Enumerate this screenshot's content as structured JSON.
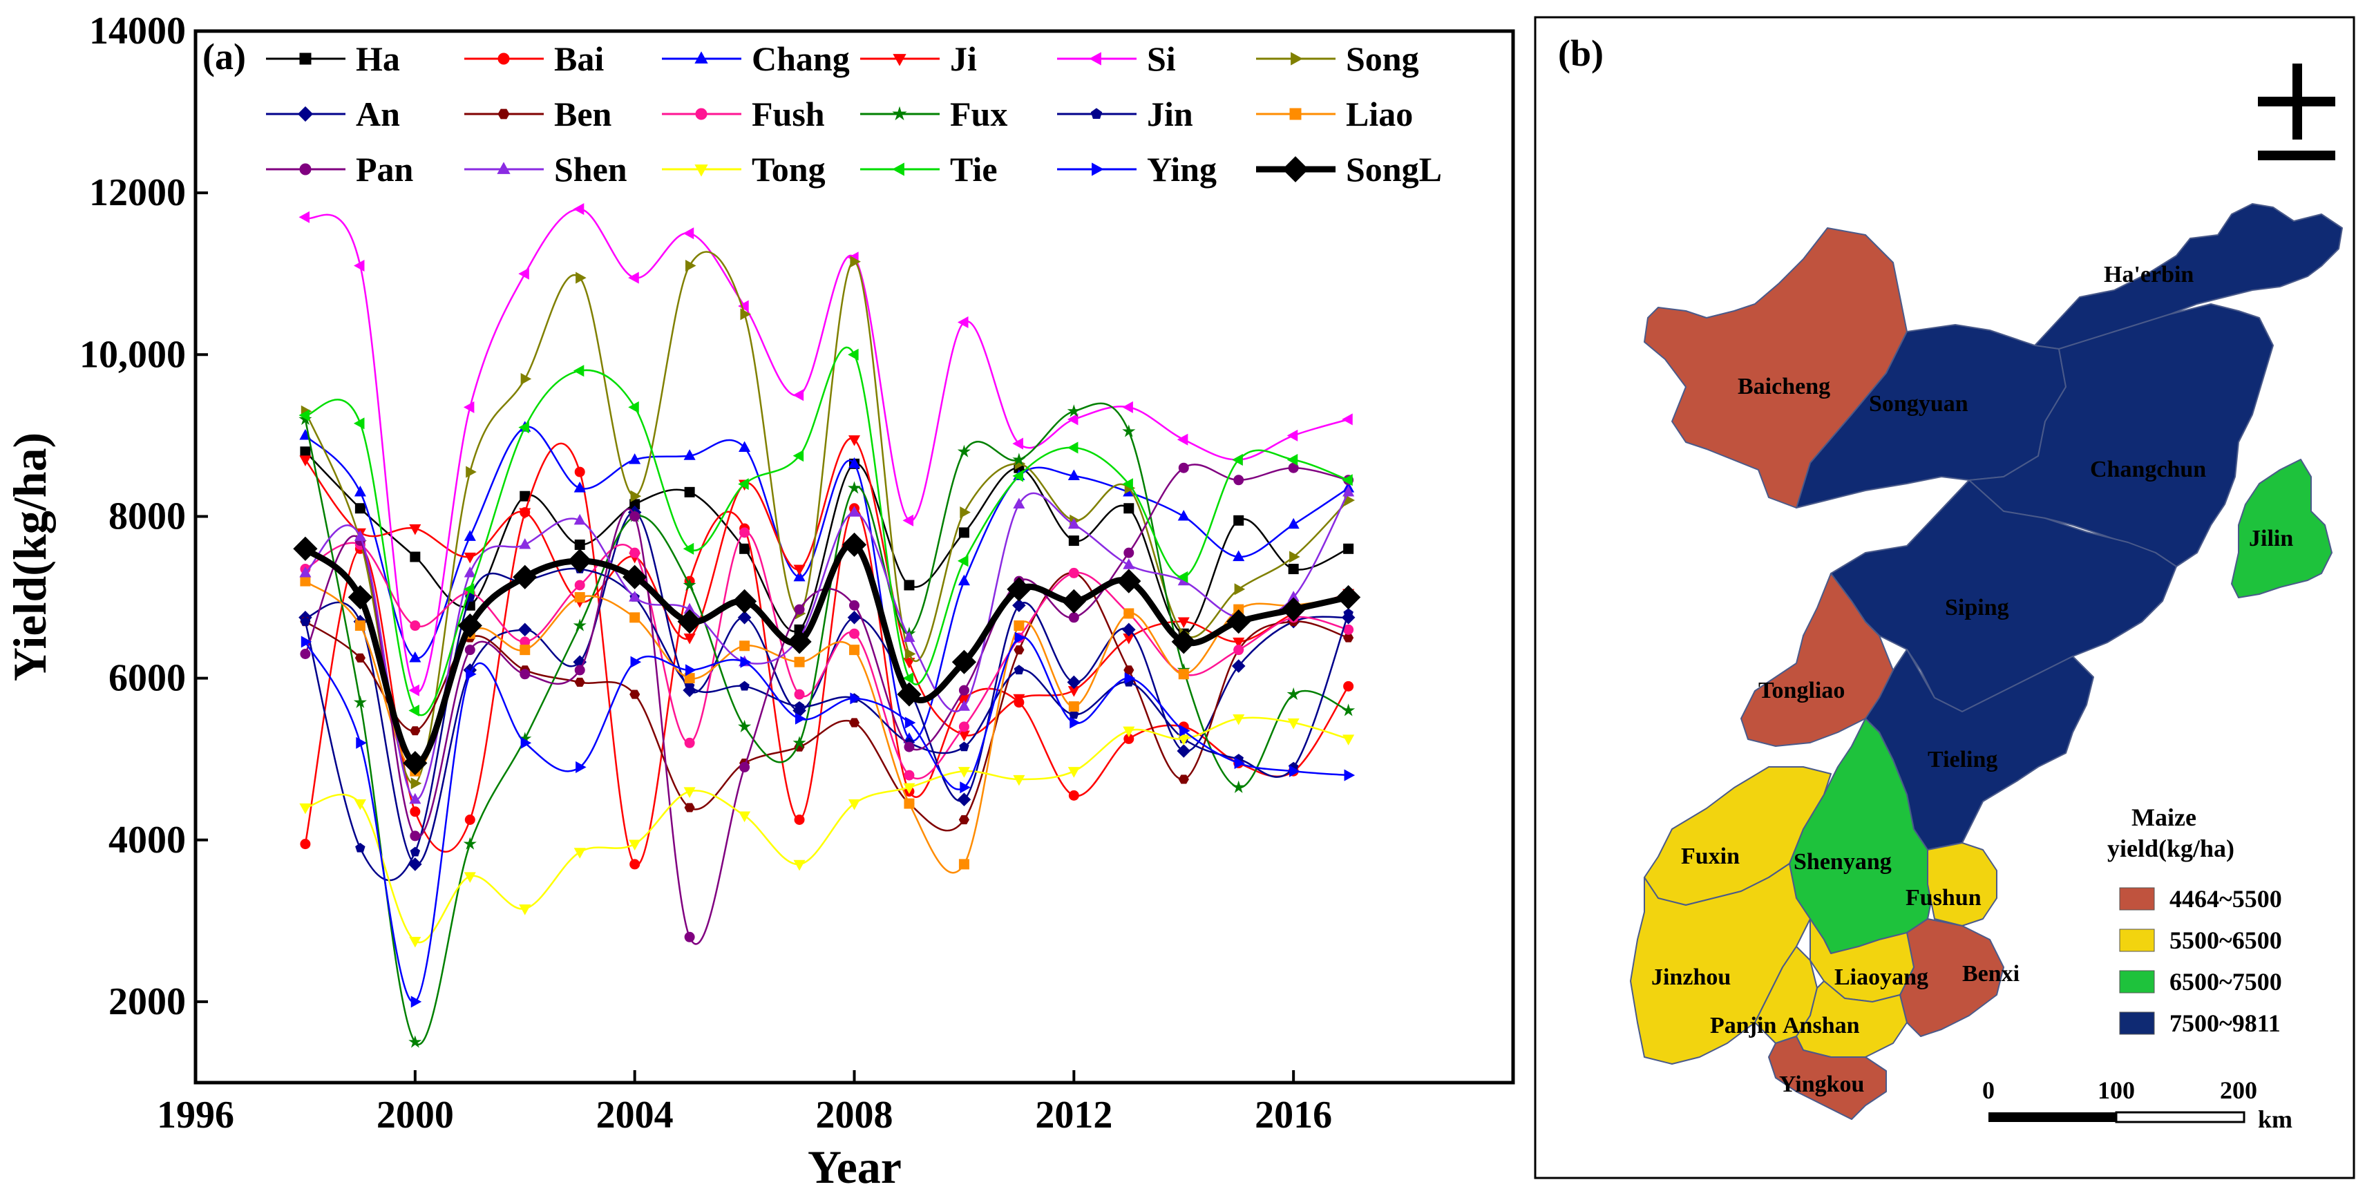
{
  "chart_data": {
    "type": "line",
    "panel_label": "(a)",
    "xlabel": "Year",
    "ylabel": "Yield(kg/ha)",
    "xlim": [
      1996,
      2020
    ],
    "ylim": [
      1000,
      14000
    ],
    "xticks": [
      1996,
      2000,
      2004,
      2008,
      2012,
      2016
    ],
    "yticks": [
      2000,
      4000,
      6000,
      8000,
      10000,
      12000,
      14000
    ],
    "ytick_labels": [
      "2000",
      "4000",
      "6000",
      "8000",
      "10,000",
      "12000",
      "14000"
    ],
    "x": [
      1998,
      1999,
      2000,
      2001,
      2002,
      2003,
      2004,
      2005,
      2006,
      2007,
      2008,
      2009,
      2010,
      2011,
      2012,
      2013,
      2014,
      2015,
      2016,
      2017
    ],
    "series": [
      {
        "name": "Ha",
        "color": "#000000",
        "marker": "square",
        "values": [
          8800,
          8100,
          7500,
          6900,
          8250,
          7650,
          8150,
          8300,
          7600,
          6600,
          8650,
          7150,
          7800,
          8600,
          7700,
          8100,
          6550,
          7950,
          7350,
          7600
        ]
      },
      {
        "name": "Bai",
        "color": "#ff0000",
        "marker": "circle",
        "values": [
          3950,
          7600,
          4350,
          4250,
          8050,
          8550,
          3700,
          7200,
          7850,
          4250,
          8100,
          4600,
          5750,
          5700,
          4550,
          5250,
          5400,
          4950,
          4850,
          5900
        ]
      },
      {
        "name": "Chang",
        "color": "#0000ff",
        "marker": "triangle-up",
        "values": [
          9000,
          8300,
          6250,
          7750,
          9100,
          8350,
          8700,
          8750,
          8850,
          7250,
          8650,
          5250,
          7200,
          8500,
          8500,
          8300,
          8000,
          7500,
          7900,
          8350
        ]
      },
      {
        "name": "Ji",
        "color": "#ff0000",
        "marker": "triangle-down",
        "values": [
          8700,
          7800,
          7850,
          7500,
          8050,
          6950,
          7500,
          6500,
          8400,
          7350,
          8950,
          6200,
          5300,
          5750,
          5850,
          6500,
          6700,
          6450,
          6800,
          7050
        ]
      },
      {
        "name": "Si",
        "color": "#ff00ff",
        "marker": "triangle-left",
        "values": [
          11700,
          11100,
          5850,
          9350,
          11000,
          11800,
          10950,
          11500,
          10600,
          9500,
          11200,
          7950,
          10400,
          8900,
          9200,
          9350,
          8950,
          8700,
          9000,
          9200
        ]
      },
      {
        "name": "Song",
        "color": "#808000",
        "marker": "triangle-right",
        "values": [
          9300,
          7700,
          4700,
          8550,
          9700,
          10950,
          8250,
          11100,
          10500,
          6800,
          11150,
          6300,
          8050,
          8650,
          7950,
          8350,
          6550,
          7100,
          7500,
          8200
        ]
      },
      {
        "name": "An",
        "color": "#00008b",
        "marker": "diamond",
        "values": [
          6750,
          6700,
          3700,
          6100,
          6600,
          6200,
          8050,
          5850,
          6750,
          5600,
          6750,
          5850,
          4500,
          6900,
          5950,
          6600,
          5100,
          6150,
          6700,
          6750
        ]
      },
      {
        "name": "Ben",
        "color": "#800000",
        "marker": "hexagon",
        "values": [
          6700,
          6250,
          5350,
          6500,
          6100,
          5950,
          5800,
          4400,
          4950,
          5150,
          5450,
          4450,
          4250,
          6350,
          7300,
          6100,
          4750,
          6350,
          6700,
          6500
        ]
      },
      {
        "name": "Fush",
        "color": "#ff1493",
        "marker": "circle",
        "values": [
          7350,
          7650,
          6650,
          7050,
          6450,
          7150,
          7550,
          5200,
          7800,
          5800,
          6550,
          4800,
          5400,
          6500,
          7300,
          6800,
          6050,
          6350,
          6750,
          6600
        ]
      },
      {
        "name": "Fux",
        "color": "#008000",
        "marker": "star",
        "values": [
          9200,
          5700,
          1500,
          3950,
          5250,
          6650,
          8000,
          7150,
          5400,
          5200,
          8350,
          6550,
          8800,
          8700,
          9300,
          9050,
          6100,
          4650,
          5800,
          5600
        ]
      },
      {
        "name": "Jin",
        "color": "#00008b",
        "marker": "pentagon",
        "values": [
          6700,
          3900,
          3850,
          7000,
          7200,
          7350,
          7000,
          5900,
          5900,
          5650,
          5750,
          5200,
          5150,
          6100,
          5550,
          5950,
          5250,
          5000,
          4900,
          6800
        ]
      },
      {
        "name": "Liao",
        "color": "#ff8c00",
        "marker": "square",
        "values": [
          7200,
          6650,
          4850,
          6550,
          6350,
          7000,
          6750,
          6000,
          6400,
          6200,
          6350,
          4450,
          3700,
          6650,
          5650,
          6800,
          6050,
          6850,
          6900,
          7000
        ]
      },
      {
        "name": "Pan",
        "color": "#800080",
        "marker": "circle",
        "values": [
          6300,
          7700,
          4050,
          6350,
          6050,
          6100,
          8000,
          2800,
          4900,
          6850,
          6900,
          5150,
          5850,
          7200,
          6750,
          7550,
          8600,
          8450,
          8600,
          8450
        ]
      },
      {
        "name": "Shen",
        "color": "#8a2be2",
        "marker": "triangle-up",
        "values": [
          7300,
          7750,
          4500,
          7300,
          7650,
          7950,
          7000,
          6850,
          6200,
          6500,
          8050,
          6500,
          5650,
          8150,
          7900,
          7400,
          7200,
          6750,
          7000,
          8300
        ]
      },
      {
        "name": "Tong",
        "color": "#ffff00",
        "marker": "triangle-down",
        "values": [
          4400,
          4450,
          2750,
          3550,
          3150,
          3850,
          3950,
          4600,
          4300,
          3700,
          4450,
          4650,
          4850,
          4750,
          4850,
          5350,
          5250,
          5500,
          5450,
          5250
        ]
      },
      {
        "name": "Tie",
        "color": "#00dd00",
        "marker": "triangle-left",
        "values": [
          9250,
          9150,
          5600,
          7100,
          9100,
          9800,
          9350,
          7600,
          8400,
          8750,
          10000,
          6000,
          7450,
          8500,
          8850,
          8400,
          7250,
          8700,
          8700,
          8450
        ]
      },
      {
        "name": "Ying",
        "color": "#0000ff",
        "marker": "triangle-right",
        "values": [
          6450,
          5200,
          2000,
          6050,
          5200,
          4900,
          6200,
          6100,
          6200,
          5500,
          5750,
          5450,
          4650,
          6500,
          5450,
          6000,
          5350,
          4950,
          4850,
          4800
        ]
      },
      {
        "name": "SongL",
        "color": "#000000",
        "marker": "diamond",
        "bold": true,
        "values": [
          7600,
          7000,
          4950,
          6650,
          7250,
          7450,
          7250,
          6700,
          6950,
          6450,
          7650,
          5800,
          6200,
          7100,
          6950,
          7200,
          6450,
          6700,
          6850,
          7000
        ]
      }
    ]
  },
  "map": {
    "panel_label": "(b)",
    "regions": [
      {
        "name": "Ha'erbin",
        "class": "7500~9811"
      },
      {
        "name": "Baicheng",
        "class": "4464~5500"
      },
      {
        "name": "Songyuan",
        "class": "7500~9811"
      },
      {
        "name": "Changchun",
        "class": "7500~9811"
      },
      {
        "name": "Jilin",
        "class": "6500~7500"
      },
      {
        "name": "Siping",
        "class": "7500~9811"
      },
      {
        "name": "Tongliao",
        "class": "4464~5500"
      },
      {
        "name": "Tieling",
        "class": "7500~9811"
      },
      {
        "name": "Fuxin",
        "class": "5500~6500"
      },
      {
        "name": "Shenyang",
        "class": "6500~7500"
      },
      {
        "name": "Fushun",
        "class": "5500~6500"
      },
      {
        "name": "Benxi",
        "class": "4464~5500"
      },
      {
        "name": "Jinzhou",
        "class": "5500~6500"
      },
      {
        "name": "Liaoyang",
        "class": "5500~6500"
      },
      {
        "name": "Panjin",
        "class": "5500~6500"
      },
      {
        "name": "Anshan",
        "class": "5500~6500"
      },
      {
        "name": "Yingkou",
        "class": "4464~5500"
      }
    ],
    "legend": {
      "title_line1": "Maize",
      "title_line2": "yield(kg/ha)",
      "classes": [
        {
          "label": "4464~5500",
          "color": "#c0533e"
        },
        {
          "label": "5500~6500",
          "color": "#f2d40f"
        },
        {
          "label": "6500~7500",
          "color": "#1ec23c"
        },
        {
          "label": "7500~9811",
          "color": "#0f2a73"
        }
      ]
    },
    "scalebar": {
      "tick_labels": [
        "0",
        "100",
        "200"
      ],
      "unit": "km"
    },
    "north_arrow": "north-arrow"
  }
}
